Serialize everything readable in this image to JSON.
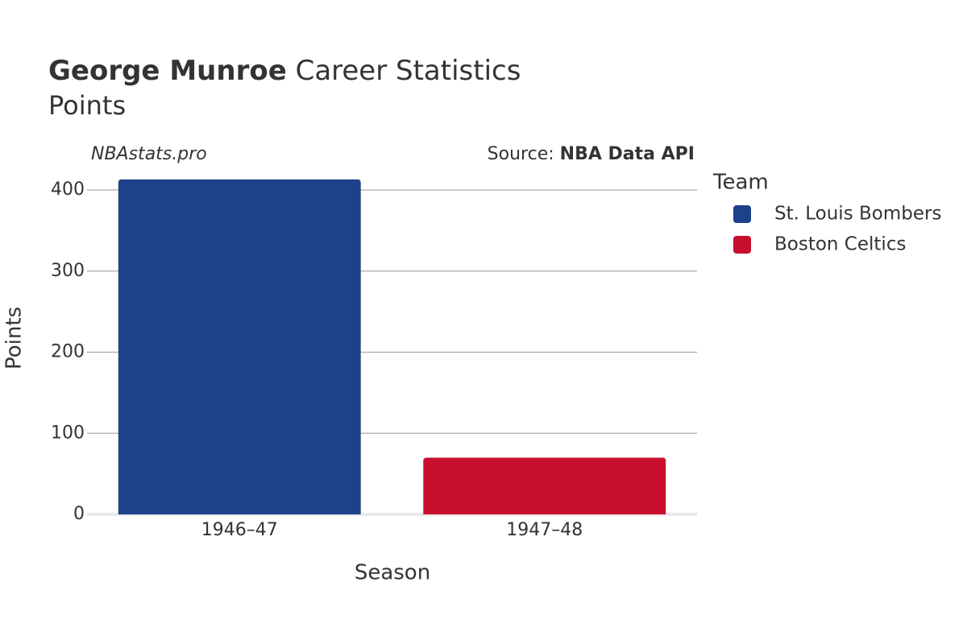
{
  "chart_data": {
    "type": "bar",
    "title_bold": "George Munroe",
    "title_rest": "Career Statistics",
    "subtitle": "Points",
    "watermark": "NBAstats.pro",
    "source_prefix": "Source:",
    "source_name": "NBA Data API",
    "x_label": "Season",
    "y_label": "Points",
    "legend_title": "Team",
    "categories": [
      "1946–47",
      "1947–48"
    ],
    "series": [
      {
        "name": "St. Louis Bombers",
        "color": "#1d428a",
        "values": [
          413,
          null
        ]
      },
      {
        "name": "Boston Celtics",
        "color": "#c8102e",
        "values": [
          null,
          70
        ]
      }
    ],
    "ylim": [
      0,
      425
    ],
    "yticks": [
      0,
      100,
      200,
      300,
      400
    ],
    "grid": true
  }
}
